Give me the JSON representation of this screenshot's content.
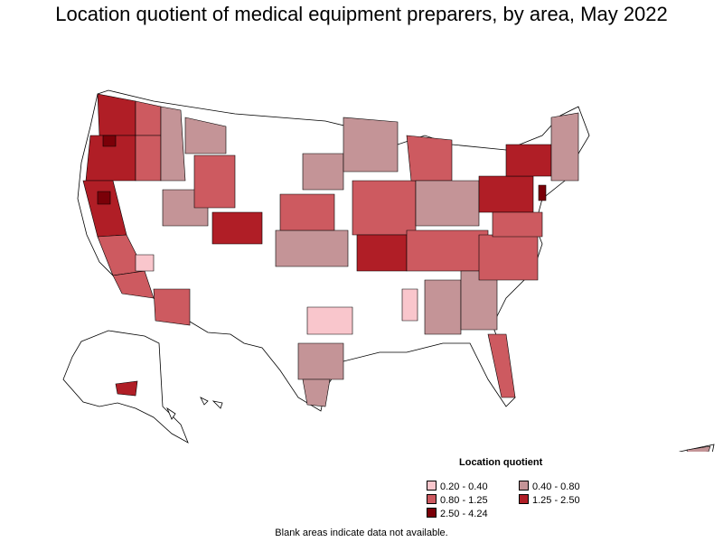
{
  "title": "Location quotient of medical equipment preparers, by area, May 2022",
  "legend": {
    "title": "Location quotient",
    "items": [
      {
        "label": "0.20 - 0.40",
        "color": "#f9c6cc"
      },
      {
        "label": "0.40 - 0.80",
        "color": "#c49497"
      },
      {
        "label": "0.80 - 1.25",
        "color": "#cd5a60"
      },
      {
        "label": "1.25 - 2.50",
        "color": "#b01e26"
      },
      {
        "label": "2.50 - 4.24",
        "color": "#7a0008"
      }
    ]
  },
  "footnote": "Blank areas indicate data not available.",
  "colors": {
    "blank": "#ffffff",
    "border": "#000000"
  }
}
